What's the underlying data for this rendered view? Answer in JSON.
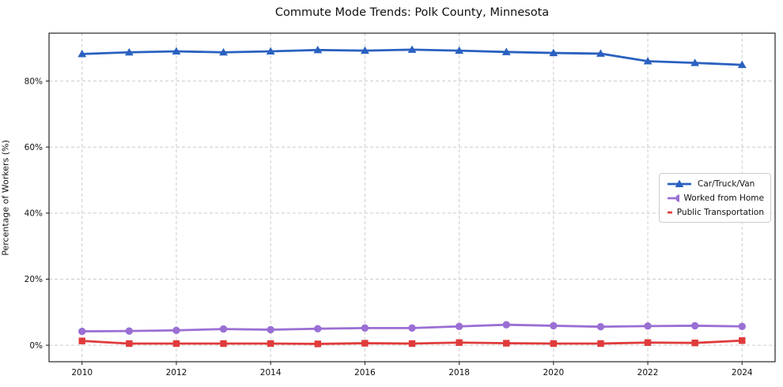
{
  "chart_data": {
    "type": "line",
    "title": "Commute Mode Trends: Polk County, Minnesota",
    "xlabel": "",
    "ylabel": "Percentage of Workers (%)",
    "x": [
      2010,
      2011,
      2012,
      2013,
      2014,
      2015,
      2016,
      2017,
      2018,
      2019,
      2020,
      2021,
      2022,
      2023,
      2024
    ],
    "series": [
      {
        "name": "Car/Truck/Van",
        "color": "#2a61c0",
        "marker": "triangle-up",
        "values": [
          88.2,
          88.7,
          89.0,
          88.7,
          89.0,
          89.4,
          89.2,
          89.5,
          89.2,
          88.8,
          88.5,
          88.3,
          86.0,
          85.5,
          84.9
        ]
      },
      {
        "name": "Worked from Home",
        "color": "#9a6fd4",
        "marker": "circle",
        "values": [
          4.2,
          4.3,
          4.5,
          4.9,
          4.7,
          5.0,
          5.2,
          5.2,
          5.7,
          6.2,
          5.9,
          5.6,
          5.8,
          5.9,
          5.7
        ]
      },
      {
        "name": "Public Transportation",
        "color": "#e03b3b",
        "marker": "square",
        "values": [
          1.3,
          0.5,
          0.5,
          0.5,
          0.5,
          0.4,
          0.6,
          0.5,
          0.8,
          0.6,
          0.5,
          0.5,
          0.8,
          0.7,
          1.4
        ]
      }
    ],
    "xticks": [
      2010,
      2012,
      2014,
      2016,
      2018,
      2020,
      2022,
      2024
    ],
    "yticks": [
      0,
      20,
      40,
      60,
      80
    ],
    "ytick_suffix": "%",
    "xlim": [
      2009.3,
      2024.7
    ],
    "ylim": [
      -5,
      94.5
    ],
    "grid": true,
    "grid_color": "#cccccc",
    "axis_color": "#262626",
    "legend_position": "center right"
  }
}
